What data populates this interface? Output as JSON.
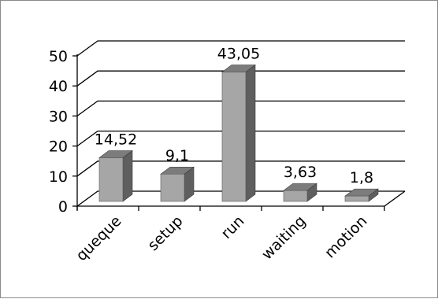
{
  "chart_data": {
    "type": "bar",
    "categories": [
      "queque",
      "setup",
      "run",
      "waiting",
      "motion"
    ],
    "values": [
      14.52,
      9.1,
      43.05,
      3.63,
      1.8
    ],
    "data_labels": [
      "14,52",
      "9,1",
      "43,05",
      "3,63",
      "1,8"
    ],
    "y_ticks": [
      "0",
      "10",
      "20",
      "30",
      "40",
      "50"
    ],
    "ylim": [
      0,
      50
    ],
    "grid": true,
    "legend": "none",
    "style": "3d-column",
    "colors": {
      "bar_front": "#a6a6a6",
      "bar_side": "#5f5f5f",
      "bar_top": "#7c7c7c",
      "grid": "#000000"
    }
  }
}
